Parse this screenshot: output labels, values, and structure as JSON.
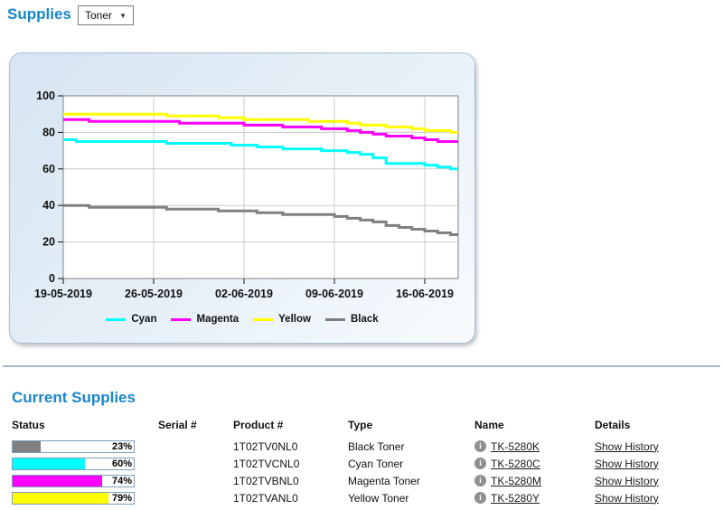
{
  "header": {
    "title": "Supplies",
    "filter": {
      "value": "Toner",
      "arrow": "▼"
    }
  },
  "chart_data": {
    "type": "line",
    "line_style": "step-after",
    "title": "",
    "xlabel": "",
    "ylabel": "",
    "ylim": [
      0,
      100
    ],
    "y_ticks": [
      0,
      20,
      40,
      60,
      80,
      100
    ],
    "x_tick_labels": [
      "19-05-2019",
      "26-05-2019",
      "02-06-2019",
      "09-06-2019",
      "16-06-2019"
    ],
    "x_tick_days": [
      0,
      7,
      14,
      21,
      28
    ],
    "x_domain_days": [
      0,
      30.6
    ],
    "grid": true,
    "legend_position": "bottom-center",
    "series": [
      {
        "name": "Cyan",
        "color": "#00ffff",
        "values": [
          76,
          75,
          75,
          75,
          75,
          75,
          75,
          75,
          74,
          74,
          74,
          74,
          74,
          73,
          73,
          72,
          72,
          71,
          71,
          71,
          70,
          70,
          69,
          68,
          66,
          63,
          63,
          63,
          62,
          61,
          60
        ]
      },
      {
        "name": "Magenta",
        "color": "#ff00ff",
        "values": [
          87,
          87,
          86,
          86,
          86,
          86,
          86,
          86,
          86,
          85,
          85,
          85,
          85,
          85,
          84,
          84,
          84,
          83,
          83,
          83,
          82,
          82,
          81,
          80,
          79,
          78,
          78,
          77,
          76,
          75,
          75
        ]
      },
      {
        "name": "Yellow",
        "color": "#ffff00",
        "values": [
          90,
          90,
          90,
          90,
          90,
          90,
          90,
          90,
          89,
          89,
          89,
          89,
          88,
          88,
          87,
          87,
          87,
          87,
          87,
          86,
          86,
          86,
          85,
          84,
          84,
          83,
          83,
          82,
          81,
          81,
          80
        ]
      },
      {
        "name": "Black",
        "color": "#808080",
        "values": [
          40,
          40,
          39,
          39,
          39,
          39,
          39,
          39,
          38,
          38,
          38,
          38,
          37,
          37,
          37,
          36,
          36,
          35,
          35,
          35,
          35,
          34,
          33,
          32,
          31,
          29,
          28,
          27,
          26,
          25,
          24
        ]
      }
    ]
  },
  "current_supplies": {
    "title": "Current Supplies",
    "columns": [
      "Status",
      "Serial #",
      "Product #",
      "Type",
      "Name",
      "Details"
    ],
    "info_icon_glyph": "i",
    "rows": [
      {
        "status_percent": 23,
        "status_color": "#808080",
        "serial": "",
        "product": "1T02TV0NL0",
        "type": "Black Toner",
        "name": "TK-5280K",
        "details": "Show History"
      },
      {
        "status_percent": 60,
        "status_color": "#00ffff",
        "serial": "",
        "product": "1T02TVCNL0",
        "type": "Cyan Toner",
        "name": "TK-5280C",
        "details": "Show History"
      },
      {
        "status_percent": 74,
        "status_color": "#ff00ff",
        "serial": "",
        "product": "1T02TVBNL0",
        "type": "Magenta Toner",
        "name": "TK-5280M",
        "details": "Show History"
      },
      {
        "status_percent": 79,
        "status_color": "#ffff00",
        "serial": "",
        "product": "1T02TVANL0",
        "type": "Yellow Toner",
        "name": "TK-5280Y",
        "details": "Show History"
      }
    ]
  },
  "colors": {
    "accent_blue": "#1886c9",
    "divider": "#a3bacf",
    "bar_border": "#7f9db9",
    "plot_border": "#808080",
    "gridline": "#c8c8c8"
  }
}
